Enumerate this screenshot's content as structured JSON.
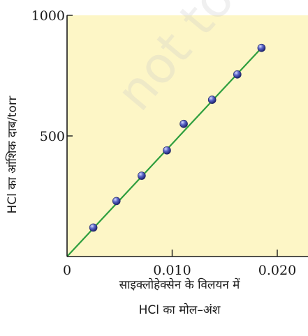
{
  "chart_data": {
    "type": "scatter",
    "title": "",
    "xlabel_lines": [
      "साइक्लोहेक्सेन के विलयन में",
      "HCl का मोल–अंश"
    ],
    "ylabel": "HCl का आंशिक दाब/torr",
    "xlim": [
      0,
      0.0235
    ],
    "ylim": [
      0,
      1000
    ],
    "x_ticks": [
      {
        "value": 0,
        "label": "0"
      },
      {
        "value": 0.01,
        "label": "0.010"
      },
      {
        "value": 0.02,
        "label": "0.020"
      }
    ],
    "y_ticks": [
      {
        "value": 500,
        "label": "500"
      },
      {
        "value": 1000,
        "label": "1000"
      }
    ],
    "points": [
      {
        "x": 0.0025,
        "y": 120
      },
      {
        "x": 0.0047,
        "y": 230
      },
      {
        "x": 0.0071,
        "y": 335
      },
      {
        "x": 0.0095,
        "y": 440
      },
      {
        "x": 0.0111,
        "y": 550
      },
      {
        "x": 0.0138,
        "y": 650
      },
      {
        "x": 0.0162,
        "y": 755
      },
      {
        "x": 0.0185,
        "y": 865
      }
    ],
    "fit_line": {
      "x": [
        0,
        0.0185
      ],
      "y": [
        0,
        865
      ]
    },
    "grid": false,
    "colors": {
      "plot_background": "#fdf6c6",
      "fit_line": "#2e9e3e",
      "marker": "#3d46a8",
      "axis": "#1a1a1a"
    }
  },
  "watermark": "not to be"
}
